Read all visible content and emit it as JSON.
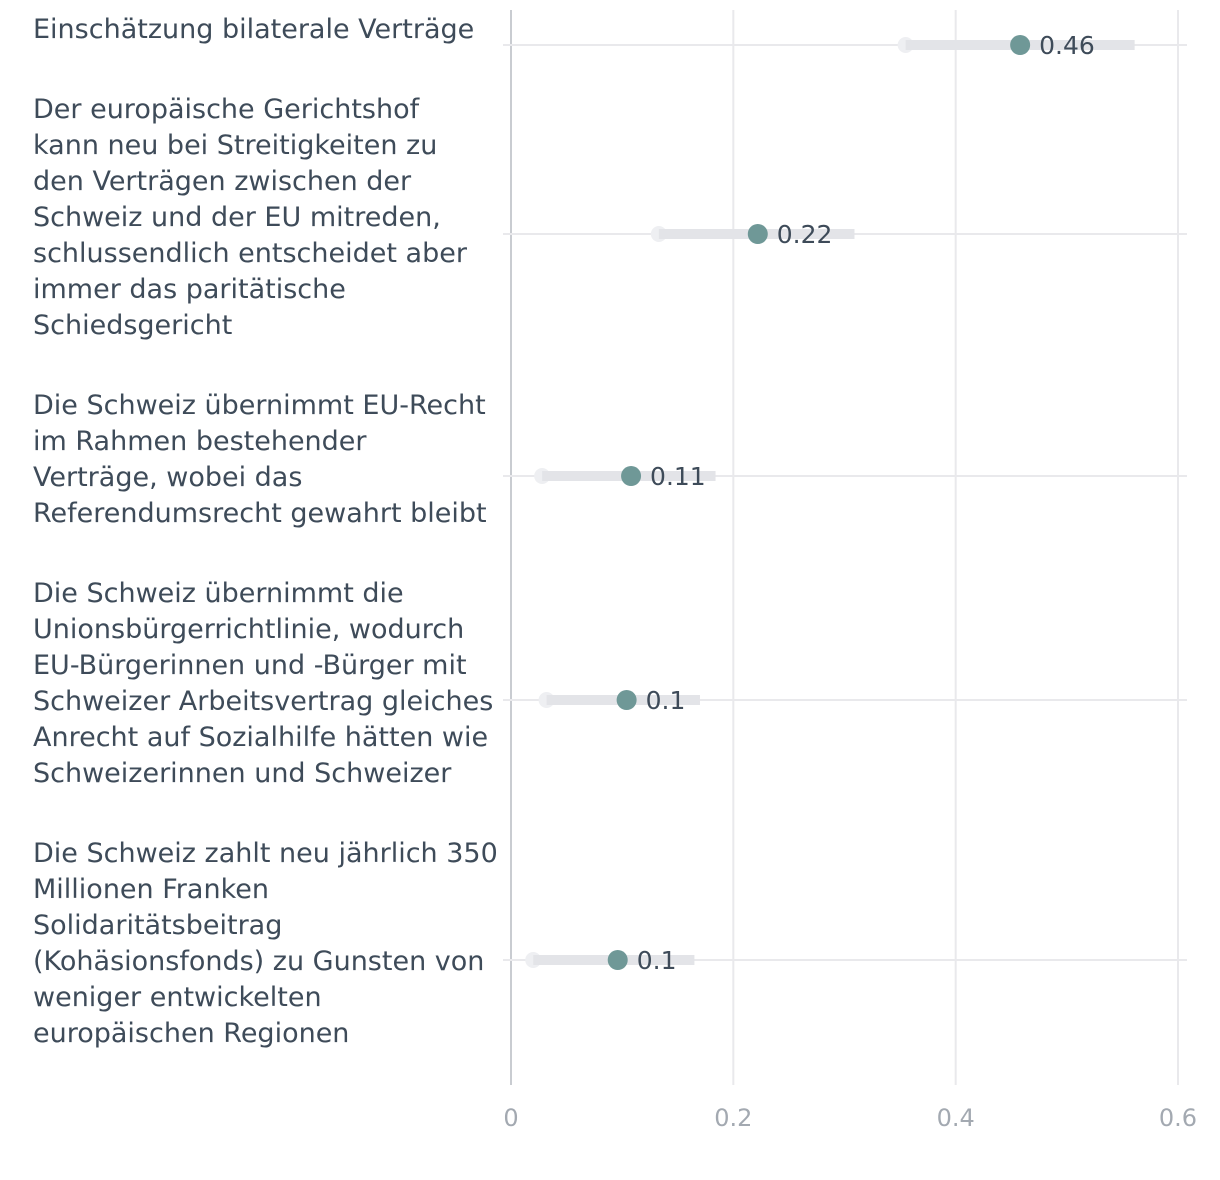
{
  "chart_data": {
    "type": "dot-ci",
    "xlim": [
      0,
      0.6
    ],
    "xticks": [
      {
        "value": 0,
        "label": "0"
      },
      {
        "value": 0.2,
        "label": "0.2"
      },
      {
        "value": 0.4,
        "label": "0.4"
      },
      {
        "value": 0.6,
        "label": "0.6"
      }
    ],
    "grid": true,
    "colors": {
      "point": "#6f9897",
      "ci": "#e3e4e8",
      "text": "#3e4b59",
      "tick": "#a3a9b1"
    },
    "items": [
      {
        "lines": [
          "Einschätzung bilaterale Verträge"
        ],
        "estimate": 0.458,
        "ci": [
          0.355,
          0.561
        ],
        "label": "0.46"
      },
      {
        "lines": [
          "Der europäische Gerichtshof",
          "kann neu bei Streitigkeiten zu",
          "den Verträgen zwischen der",
          "Schweiz und der EU mitreden,",
          "schlussendlich entscheidet aber",
          "immer das paritätische",
          "Schiedsgericht"
        ],
        "estimate": 0.222,
        "ci": [
          0.133,
          0.309
        ],
        "label": "0.22"
      },
      {
        "lines": [
          "Die Schweiz übernimmt EU-Recht",
          "im Rahmen bestehender",
          "Verträge, wobei das",
          "Referendumsrecht gewahrt bleibt"
        ],
        "estimate": 0.108,
        "ci": [
          0.028,
          0.184
        ],
        "label": "0.11"
      },
      {
        "lines": [
          "Die Schweiz übernimmt die",
          "Unionsbürgerrichtlinie, wodurch",
          "EU-Bürgerinnen und -Bürger mit",
          "Schweizer Arbeitsvertrag gleiches",
          "Anrecht auf Sozialhilfe hätten wie",
          "Schweizerinnen und Schweizer"
        ],
        "estimate": 0.104,
        "ci": [
          0.032,
          0.17
        ],
        "label": "0.1"
      },
      {
        "lines": [
          "Die Schweiz zahlt neu jährlich 350",
          "Millionen Franken",
          "Solidaritätsbeitrag",
          "(Kohäsionsfonds) zu Gunsten von",
          "weniger entwickelten",
          "europäischen Regionen"
        ],
        "estimate": 0.096,
        "ci": [
          0.02,
          0.165
        ],
        "label": "0.1"
      }
    ]
  }
}
